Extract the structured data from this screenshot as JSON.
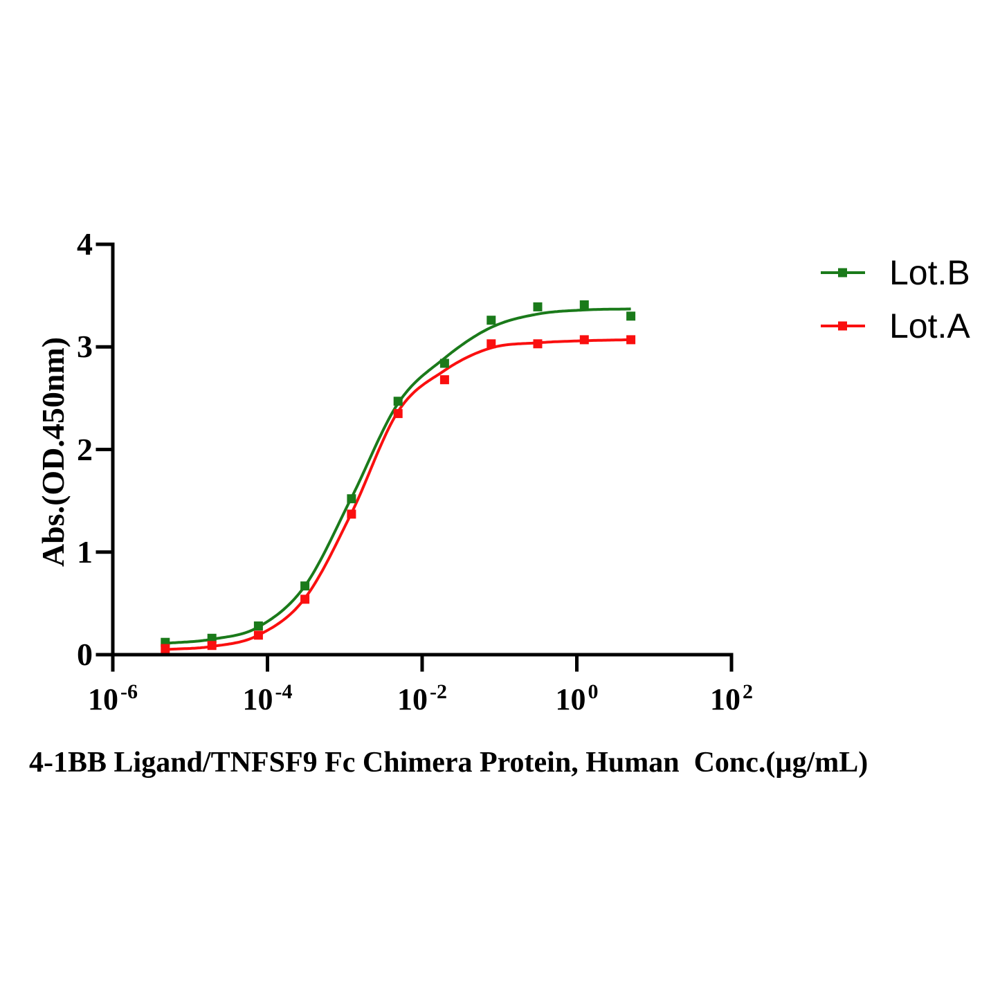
{
  "chart_data": {
    "type": "scatter",
    "subtype": "dose-response sigmoid with fitted curves",
    "xlabel": "4-1BB Ligand/TNFSF9 Fc Chimera Protein, Human  Conc.(µg/mL)",
    "ylabel": "Abs.(OD.450nm)",
    "grid": false,
    "legend_position": "top-right",
    "x_axis": {
      "scale": "log10",
      "range_exponents": [
        -6,
        2
      ],
      "tick_base": "10",
      "tick_exponents": [
        "-6",
        "-4",
        "-2",
        "0",
        "2"
      ]
    },
    "y_axis": {
      "range": [
        0,
        4
      ],
      "ticks": [
        "0",
        "1",
        "2",
        "3",
        "4"
      ]
    },
    "concentrations_ug_per_ml": [
      4.77e-06,
      1.91e-05,
      7.63e-05,
      0.000305,
      0.00122,
      0.00488,
      0.0195,
      0.0781,
      0.3125,
      1.25,
      5
    ],
    "series": [
      {
        "name": "Lot.B",
        "color": "#1A7A1A",
        "marker": "square",
        "values": [
          0.12,
          0.16,
          0.28,
          0.67,
          1.52,
          2.47,
          2.84,
          3.26,
          3.39,
          3.41,
          3.3
        ],
        "fit_curve": [
          0.11,
          0.15,
          0.27,
          0.67,
          1.53,
          2.45,
          2.89,
          3.19,
          3.32,
          3.36,
          3.37
        ]
      },
      {
        "name": "Lot.A",
        "color": "#FA0F0F",
        "marker": "square",
        "values": [
          0.06,
          0.09,
          0.19,
          0.54,
          1.37,
          2.35,
          2.68,
          3.03,
          3.03,
          3.07,
          3.07
        ],
        "fit_curve": [
          0.05,
          0.08,
          0.19,
          0.55,
          1.38,
          2.37,
          2.77,
          2.99,
          3.04,
          3.06,
          3.07
        ]
      }
    ]
  }
}
